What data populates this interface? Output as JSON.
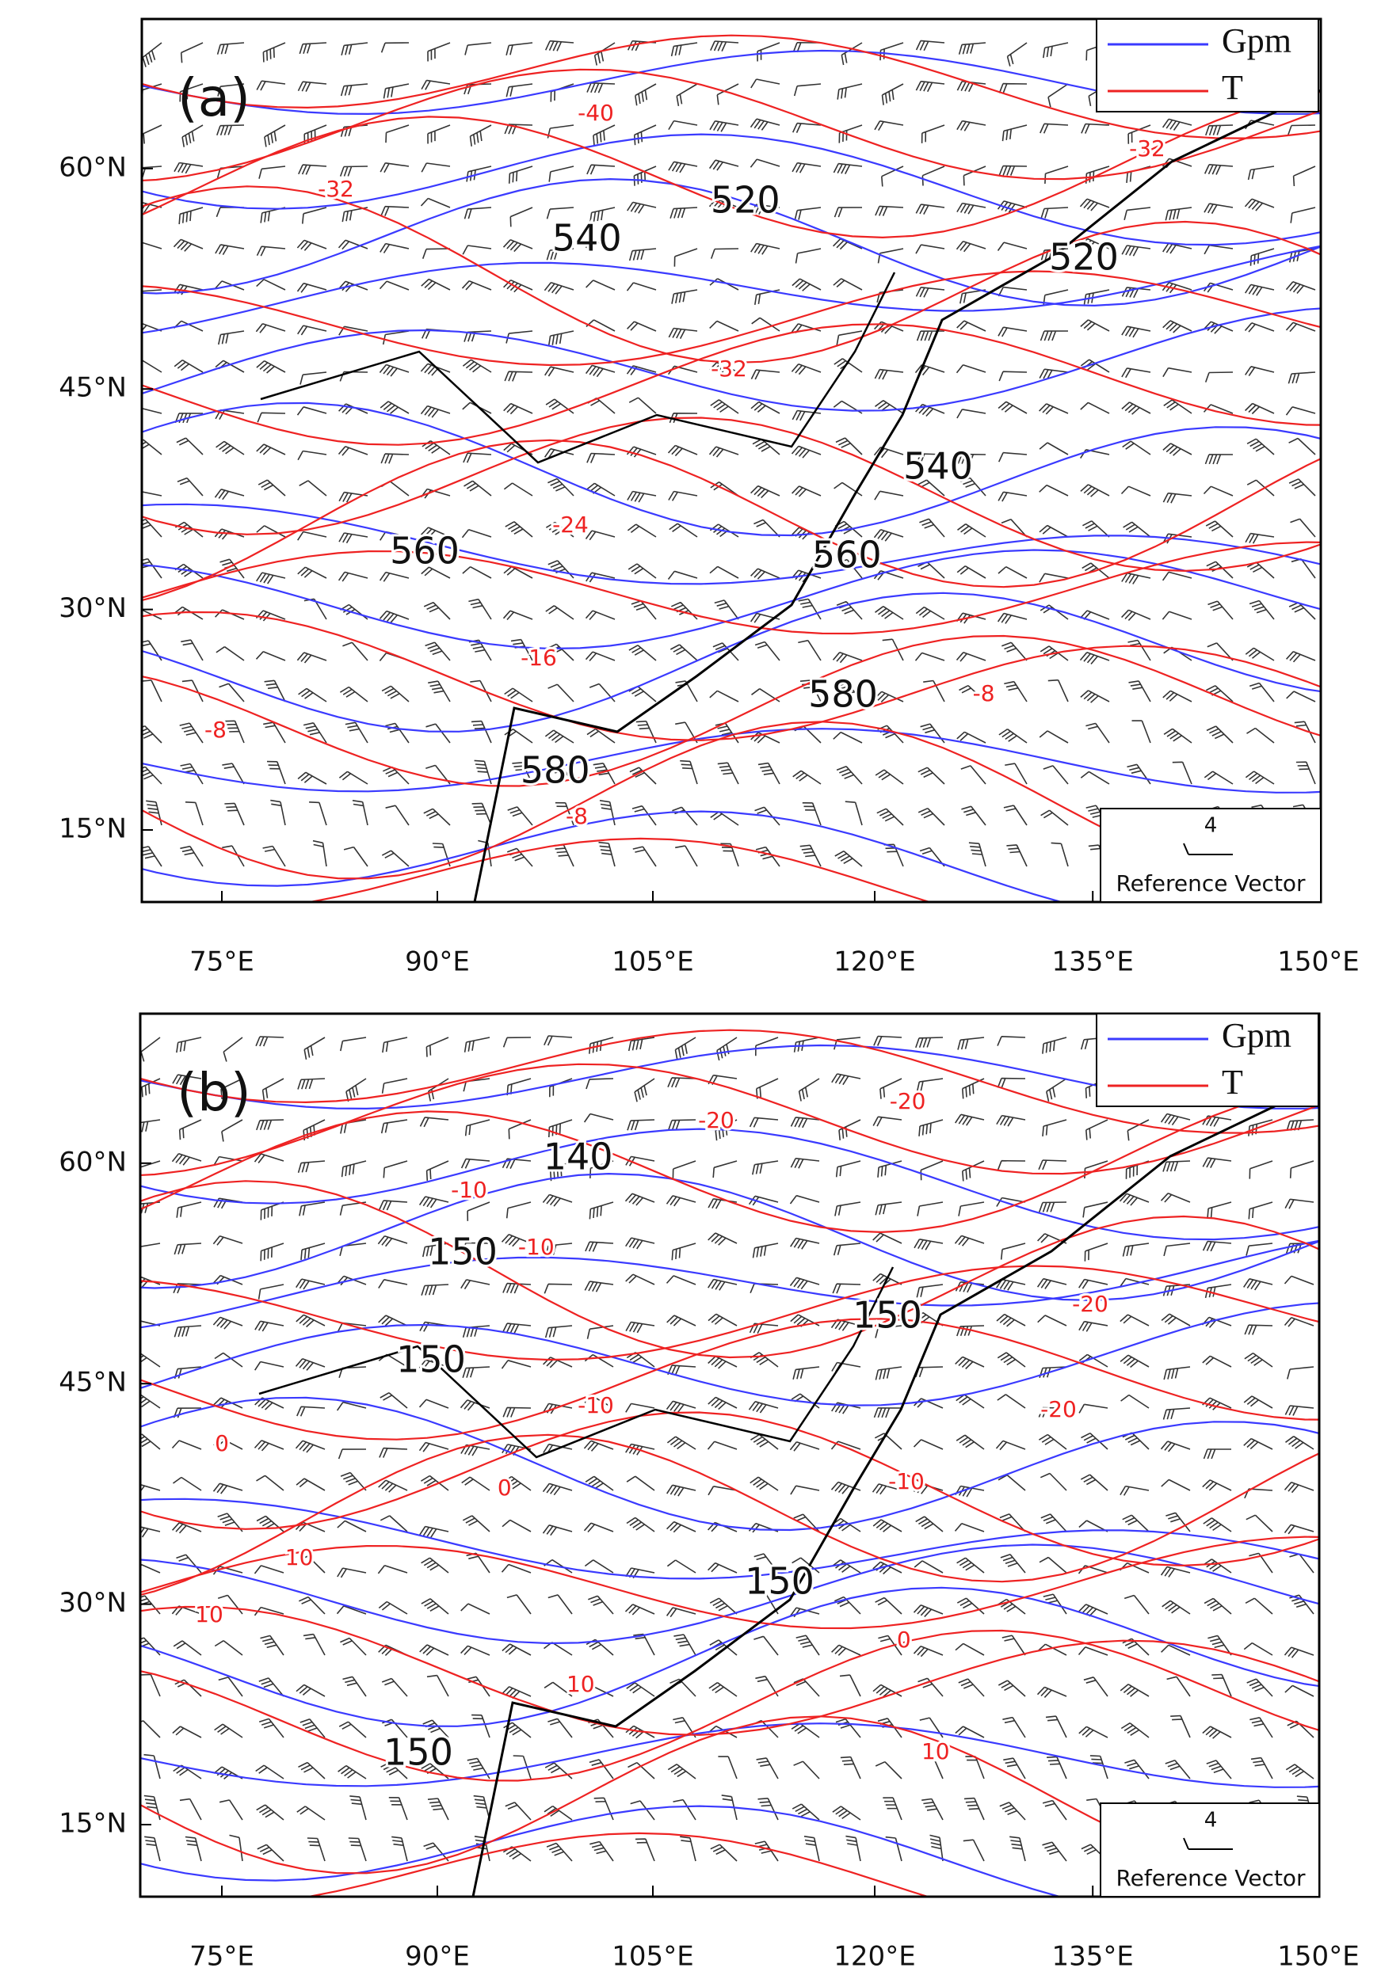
{
  "panels": [
    {
      "label": "(a)",
      "legend": [
        {
          "name": "Gpm",
          "color": "#3a3aff"
        },
        {
          "name": "T",
          "color": "#ee2222"
        }
      ],
      "lat_labels": [
        "60°N",
        "45°N",
        "30°N",
        "15°N"
      ],
      "lon_labels": [
        "75°E",
        "90°E",
        "105°E",
        "120°E",
        "135°E",
        "150°E"
      ],
      "gpm_labels": [
        "520",
        "540",
        "560",
        "560",
        "580",
        "580",
        "520",
        "540"
      ],
      "t_labels": [
        "-40",
        "-32",
        "-32",
        "-32",
        "-24",
        "-16",
        "-8",
        "-8",
        "-8"
      ],
      "reference_vector": {
        "value": "4",
        "label": "Reference Vector"
      }
    },
    {
      "label": "(b)",
      "legend": [
        {
          "name": "Gpm",
          "color": "#3a3aff"
        },
        {
          "name": "T",
          "color": "#ee2222"
        }
      ],
      "lat_labels": [
        "60°N",
        "45°N",
        "30°N",
        "15°N"
      ],
      "lon_labels": [
        "75°E",
        "90°E",
        "105°E",
        "120°E",
        "135°E",
        "150°E"
      ],
      "gpm_labels": [
        "140",
        "150",
        "150",
        "150",
        "150",
        "150"
      ],
      "t_labels": [
        "-20",
        "-20",
        "-10",
        "-10",
        "-10",
        "-20",
        "-20",
        "-10",
        "0",
        "0",
        "10",
        "10",
        "10",
        "0",
        "10"
      ],
      "reference_vector": {
        "value": "4",
        "label": "Reference Vector"
      }
    }
  ]
}
